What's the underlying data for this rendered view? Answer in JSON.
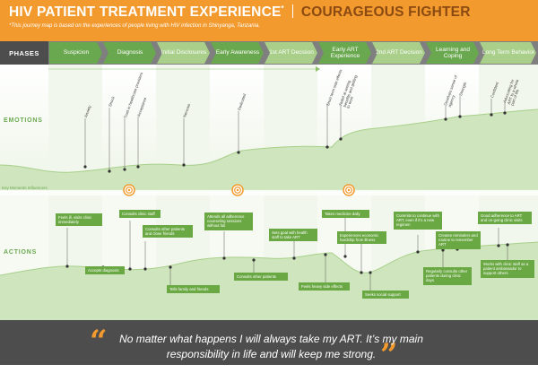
{
  "header": {
    "title": "HIV PATIENT TREATMENT EXPERIENCE",
    "title_mark": "*",
    "persona": "COURAGEOUS FIGHTER",
    "subtitle": "*This journey map is based on the experiences of people living with HIV infection in Shinyanga, Tanzania."
  },
  "phases_label": "PHASES",
  "phases": [
    {
      "label": "Suspicion",
      "color": "#6aa84f"
    },
    {
      "label": "Diagnosis",
      "color": "#6aa84f"
    },
    {
      "label": "Initial Disclosures",
      "color": "#a9cf8a"
    },
    {
      "label": "Early Awareness",
      "color": "#6aa84f"
    },
    {
      "label": "1st ART Decision",
      "color": "#a9cf8a"
    },
    {
      "label": "Early ART Experience",
      "color": "#6aa84f"
    },
    {
      "label": "2nd ART Decision",
      "color": "#a9cf8a"
    },
    {
      "label": "Learning and Coping",
      "color": "#6aa84f"
    },
    {
      "label": "Long Term Behavior",
      "color": "#a9cf8a"
    }
  ],
  "sections": {
    "emotions": "EMOTIONS",
    "actions": "ACTIONS"
  },
  "key_moments_label": "Key Moments Influencers",
  "emotion_labels": [
    "Anxiety",
    "Shock",
    "Trust in healthcare providers",
    "Acceptance",
    "Nervous",
    "Dedicated",
    "Short term side effects",
    "Relief at seeing benefits and getting to work",
    "Develops sense of agency",
    "Strength",
    "Confident",
    "Advocating for ART to a whole part of life"
  ],
  "actions": [
    "Feels ill, visits clinic immediately",
    "Accepts diagnosis",
    "Consults clinic staff",
    "Consults other patients and close friends",
    "Tells family and friends",
    "Attends all adherence counseling sessions without fail",
    "Consults other patients",
    "Sets goal with health staff to take ART",
    "Feels heavy side effects",
    "Takes medicine daily",
    "Experiences economic hardship from illness",
    "Seeks social support",
    "Commits to continue with ART, even if it's a new regimen",
    "Regularly consults other patients during clinic days",
    "Creates reminders and routine to remember ART",
    "Good adherence to ART and on-going clinic visits",
    "Works with clinic staff as a patient ambassador to support others"
  ],
  "quote": "No matter what happens I will always take my ART. It’s my main responsibility in life and will keep me strong.",
  "quote_marks": {
    "open": "“",
    "close": "”"
  },
  "colors": {
    "orange": "#f29a2e",
    "green": "#6aa84f",
    "light_green": "#a9cf8a",
    "dark_gray": "#4d4d4d"
  }
}
